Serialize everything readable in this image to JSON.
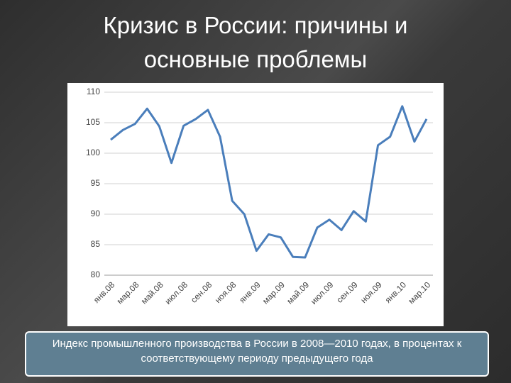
{
  "title": "Кризис в России: причины и основные проблемы",
  "caption": "Индекс промышленного производства в России в 2008—2010 годах, в процентах к соответствующему периоду предыдущего года",
  "chart_data": {
    "type": "line",
    "categories": [
      "янв.08",
      null,
      "мар.08",
      null,
      "май.08",
      null,
      "июл.08",
      null,
      "сен.08",
      null,
      "ноя.08",
      null,
      "янв.09",
      null,
      "мар.09",
      null,
      "май.09",
      null,
      "июл.09",
      null,
      "сен.09",
      null,
      "ноя.09",
      null,
      "янв.10",
      null,
      "мар.10"
    ],
    "values": [
      102.2,
      103.8,
      104.8,
      107.3,
      104.4,
      98.4,
      104.5,
      105.6,
      107.1,
      102.7,
      92.2,
      90.0,
      84.0,
      86.7,
      86.2,
      83.0,
      82.9,
      87.8,
      89.1,
      87.4,
      90.5,
      88.8,
      101.3,
      102.7,
      107.7,
      101.9,
      105.6
    ],
    "color": "#4a7ebb",
    "ylim": [
      80,
      110
    ],
    "yticks": [
      80,
      85,
      90,
      95,
      100,
      105,
      110
    ],
    "grid": true
  }
}
